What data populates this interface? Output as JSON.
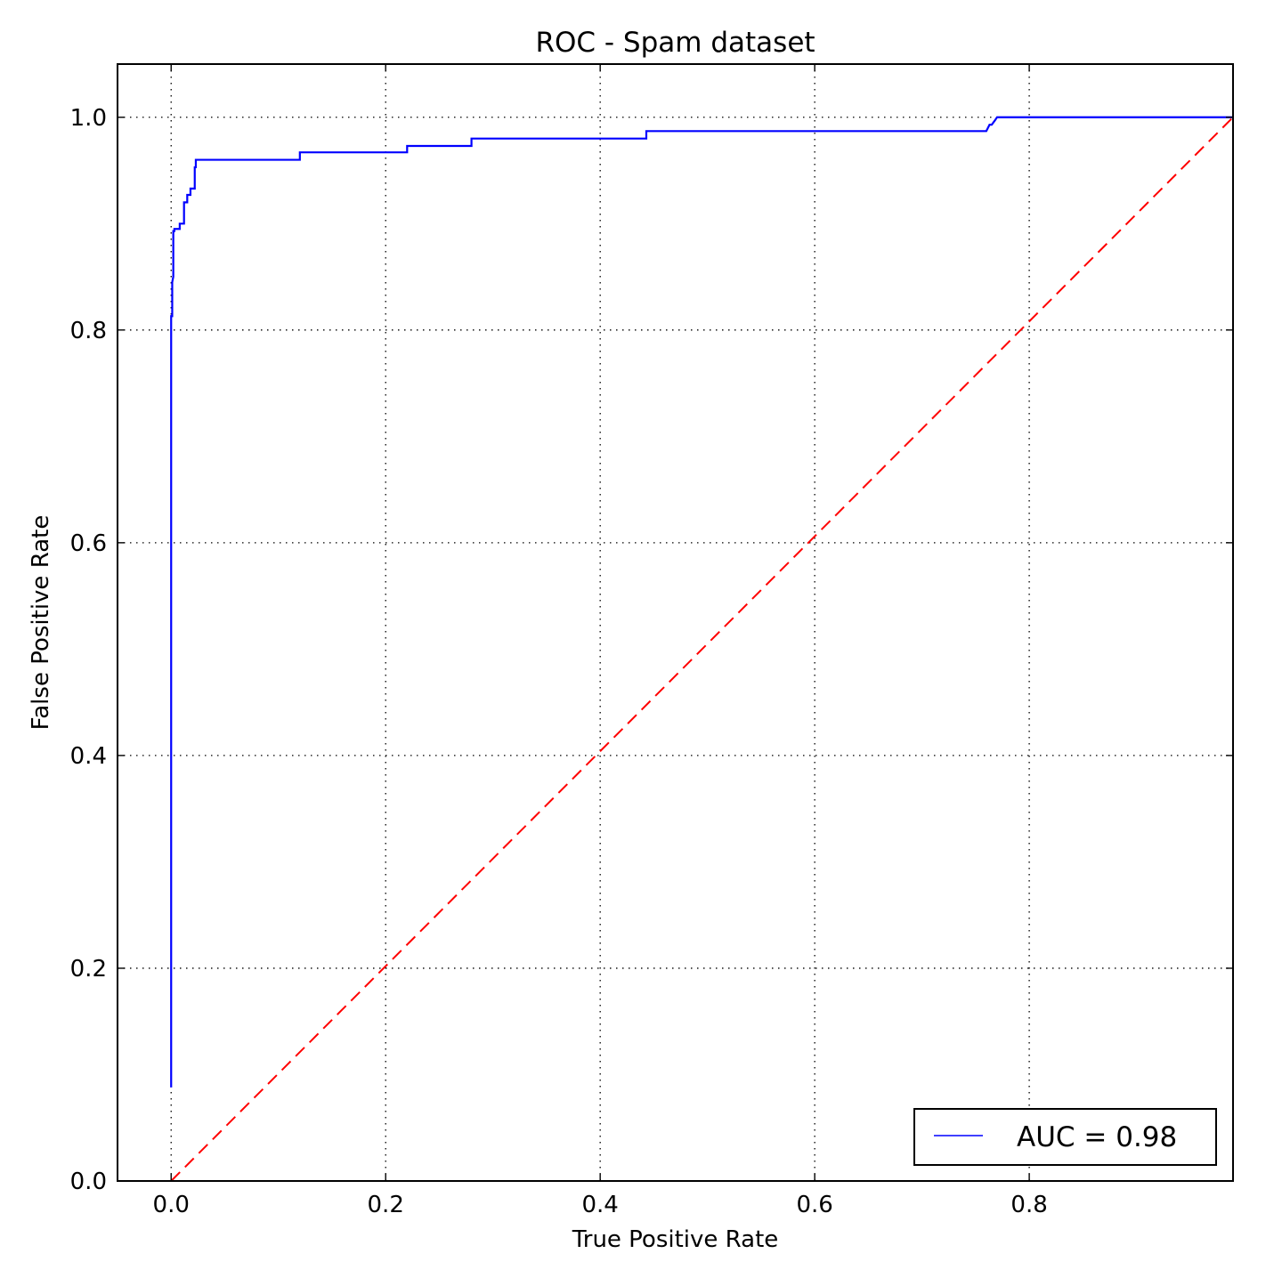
{
  "chart_data": {
    "type": "line",
    "title": "ROC - Spam dataset",
    "xlabel": "True Positive Rate",
    "ylabel": "False Positive Rate",
    "xlim": [
      -0.05,
      0.99
    ],
    "ylim": [
      0.0,
      1.05
    ],
    "xticks": [
      0.0,
      0.2,
      0.4,
      0.6,
      0.8
    ],
    "xtick_labels": [
      "0.0",
      "0.2",
      "0.4",
      "0.6",
      "0.8"
    ],
    "yticks": [
      0.0,
      0.2,
      0.4,
      0.6,
      0.8,
      1.0
    ],
    "ytick_labels": [
      "0.0",
      "0.2",
      "0.4",
      "0.6",
      "0.8",
      "1.0"
    ],
    "grid": true,
    "legend_position": "lower-right",
    "series": [
      {
        "name": "AUC = 0.98",
        "color": "#0000ff",
        "style": "solid",
        "x": [
          0.0,
          0.0,
          0.0,
          0.0,
          0.001,
          0.001,
          0.002,
          0.002,
          0.003,
          0.003,
          0.008,
          0.008,
          0.012,
          0.012,
          0.015,
          0.015,
          0.018,
          0.018,
          0.022,
          0.022,
          0.023,
          0.023,
          0.12,
          0.12,
          0.22,
          0.22,
          0.28,
          0.28,
          0.443,
          0.443,
          0.76,
          0.763,
          0.765,
          0.768,
          0.77,
          0.99
        ],
        "y": [
          0.088,
          0.785,
          0.79,
          0.813,
          0.813,
          0.845,
          0.85,
          0.893,
          0.893,
          0.895,
          0.895,
          0.9,
          0.9,
          0.92,
          0.92,
          0.927,
          0.927,
          0.933,
          0.933,
          0.953,
          0.953,
          0.96,
          0.96,
          0.967,
          0.967,
          0.973,
          0.973,
          0.98,
          0.98,
          0.987,
          0.987,
          0.993,
          0.993,
          0.997,
          1.0,
          1.0
        ]
      },
      {
        "name": "",
        "color": "#ff0000",
        "style": "dashed",
        "x": [
          0.0,
          0.99
        ],
        "y": [
          0.0,
          1.0
        ]
      }
    ]
  }
}
